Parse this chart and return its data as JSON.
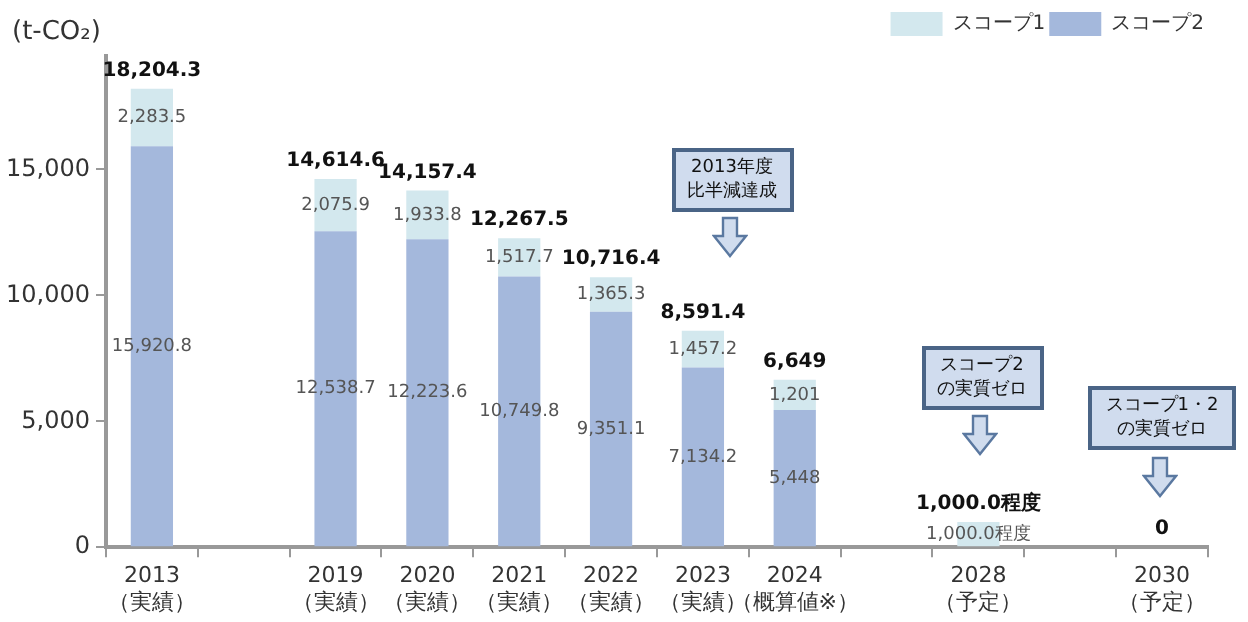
{
  "chart_data": {
    "type": "bar",
    "stacked": true,
    "categories": [
      "2013\n（実績）",
      null,
      "2019\n（実績）",
      "2020\n（実績）",
      "2021\n（実績）",
      "2022\n（実績）",
      "2023\n（実績）",
      "2024\n（概算値※）",
      null,
      "2028\n（予定）",
      null,
      "2030\n（予定）"
    ],
    "ylabel": "(t-CO₂)",
    "series": [
      {
        "name": "スコープ2",
        "color": "#a4b8dc",
        "values": [
          15920.8,
          null,
          12538.7,
          12223.6,
          10749.8,
          9351.1,
          7134.2,
          5448,
          null,
          null,
          null,
          null
        ],
        "value_labels": [
          "15,920.8",
          null,
          "12,538.7",
          "12,223.6",
          "10,749.8",
          "9,351.1",
          "7,134.2",
          "5,448",
          null,
          null,
          null,
          null
        ]
      },
      {
        "name": "スコープ1",
        "color": "#d3e8ee",
        "values": [
          2283.5,
          null,
          2075.9,
          1933.8,
          1517.7,
          1365.3,
          1457.2,
          1201,
          null,
          1000,
          null,
          null
        ],
        "value_labels": [
          "2,283.5",
          null,
          "2,075.9",
          "1,933.8",
          "1,517.7",
          "1,365.3",
          "1,457.2",
          "1,201",
          null,
          "1,000.0程度",
          null,
          null
        ]
      }
    ],
    "totals": [
      "18,204.3",
      null,
      "14,614.6",
      "14,157.4",
      "12,267.5",
      "10,716.4",
      "8,591.4",
      "6,649",
      null,
      "1,000.0程度",
      null,
      "0"
    ],
    "annotations": [
      "2013年度比半減達成",
      "スコープ2の実質ゼロ",
      "スコープ1・2の実質ゼロ"
    ],
    "ylim": [
      0,
      19500
    ],
    "yticks": [
      0,
      {
        "value": 5000,
        "label": "5,000"
      },
      {
        "value": 10000,
        "label": "10,000"
      },
      {
        "value": 15000,
        "label": "15,000"
      }
    ],
    "grid": false,
    "legend": "top right"
  }
}
